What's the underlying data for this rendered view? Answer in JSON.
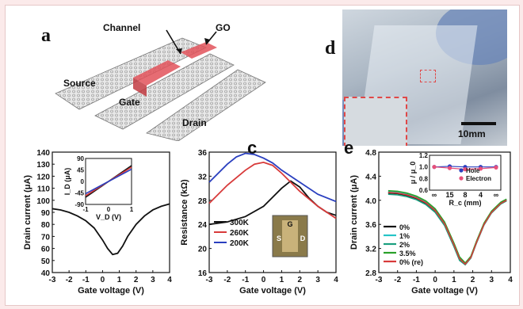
{
  "colors": {
    "page_bg": "#fbeaea",
    "black_series": "#111111",
    "red_series": "#d83a3a",
    "blue_series": "#2a3fbf",
    "green": "#2aa02a",
    "cyan": "#25c4c7",
    "teal": "#1a9f7f",
    "pink_dot": "#e8507a",
    "highlight_red": "#e04848"
  },
  "figure": {
    "panel_a": {
      "letter": "a",
      "labels": {
        "channel": "Channel",
        "go": "GO",
        "source": "Source",
        "gate": "Gate",
        "drain": "Drain"
      }
    },
    "panel_d": {
      "letter": "d",
      "scale_bar": "10mm"
    }
  },
  "chart_data": [
    {
      "panel": "b",
      "type": "line",
      "xlabel": "Gate voltage (V)",
      "ylabel": "Drain current (μA)",
      "xlim": [
        -3,
        4
      ],
      "ylim": [
        40,
        140
      ],
      "xticks": [
        "-3",
        "-2",
        "-1",
        "0",
        "1",
        "2",
        "3",
        "4"
      ],
      "yticks": [
        "40",
        "50",
        "60",
        "70",
        "80",
        "90",
        "100",
        "110",
        "120",
        "130",
        "140"
      ],
      "series": [
        {
          "color": "#111111",
          "x": [
            -3.0,
            -2.5,
            -2.0,
            -1.5,
            -1.0,
            -0.5,
            0.0,
            0.3,
            0.6,
            0.9,
            1.2,
            1.5,
            2.0,
            2.5,
            3.0,
            3.5,
            4.0
          ],
          "y": [
            93,
            92,
            90,
            87,
            83,
            77,
            67,
            60,
            55,
            56,
            62,
            70,
            80,
            87,
            92,
            95,
            97
          ]
        }
      ],
      "inset": {
        "xlabel": "V_D (V)",
        "ylabel": "I_D (μA)",
        "xticks": [
          "-1",
          "0",
          "1"
        ],
        "yticks": [
          "-90",
          "-45",
          "0",
          "45",
          "90"
        ],
        "xlim": [
          -1,
          1
        ],
        "ylim": [
          -90,
          90
        ],
        "lines": [
          {
            "color": "#111111",
            "x": [
              -1,
              1
            ],
            "y": [
              -62,
              62
            ]
          },
          {
            "color": "#d83a3a",
            "x": [
              -1,
              1
            ],
            "y": [
              -56,
              56
            ]
          },
          {
            "color": "#2a3fbf",
            "x": [
              -1,
              1
            ],
            "y": [
              -48,
              48
            ]
          }
        ]
      }
    },
    {
      "panel": "c",
      "type": "line",
      "xlabel": "Gate voltage (V)",
      "ylabel": "Resistance (kΩ)",
      "xlim": [
        -3,
        4
      ],
      "ylim": [
        16,
        36
      ],
      "xticks": [
        "-3",
        "-2",
        "-1",
        "0",
        "1",
        "2",
        "3",
        "4"
      ],
      "yticks": [
        "16",
        "20",
        "24",
        "28",
        "32",
        "36"
      ],
      "series": [
        {
          "name": "300K",
          "color": "#111111",
          "x": [
            -3,
            -2,
            -1,
            0,
            0.5,
            1,
            1.5,
            2,
            2.5,
            3,
            3.5,
            4
          ],
          "y": [
            24,
            24.4,
            25.3,
            27,
            28.5,
            30,
            31.2,
            30.2,
            28.4,
            27,
            26,
            25.5
          ]
        },
        {
          "name": "260K",
          "color": "#d83a3a",
          "x": [
            -3,
            -2,
            -1,
            -0.5,
            0,
            0.5,
            1,
            1.5,
            2,
            3,
            4
          ],
          "y": [
            27.5,
            30.5,
            33,
            34,
            34.3,
            33.8,
            32.5,
            31,
            29.5,
            27,
            25
          ]
        },
        {
          "name": "200K",
          "color": "#2a3fbf",
          "x": [
            -3,
            -2,
            -1.5,
            -1,
            -0.5,
            0,
            0.5,
            1,
            1.5,
            2,
            3,
            4
          ],
          "y": [
            31,
            34,
            35.2,
            35.8,
            35.6,
            35,
            34.2,
            33,
            32,
            31,
            29,
            27.8
          ]
        }
      ],
      "inset_labels": {
        "g": "G",
        "s": "S",
        "d": "D"
      }
    },
    {
      "panel": "e",
      "type": "line",
      "xlabel": "Gate voltage (V)",
      "ylabel": "Drain current (μA)",
      "xlim": [
        -3,
        4
      ],
      "ylim": [
        2.8,
        4.8
      ],
      "xticks": [
        "-3",
        "-2",
        "-1",
        "0",
        "1",
        "2",
        "3",
        "4"
      ],
      "yticks": [
        "2.8",
        "3.2",
        "3.6",
        "4.0",
        "4.4",
        "4.8"
      ],
      "series": [
        {
          "name": "0%",
          "color": "#111111",
          "x": [
            -2.5,
            -2,
            -1.5,
            -1,
            -0.5,
            0,
            0.5,
            1,
            1.3,
            1.6,
            1.9,
            2.2,
            2.6,
            3,
            3.5,
            3.8
          ],
          "y": [
            4.12,
            4.11,
            4.08,
            4.03,
            3.95,
            3.82,
            3.6,
            3.25,
            3.02,
            2.94,
            3.05,
            3.3,
            3.6,
            3.8,
            3.95,
            4.0
          ]
        },
        {
          "name": "1%",
          "color": "#25c4c7",
          "x": [
            -2.5,
            -2,
            -1.5,
            -1,
            -0.5,
            0,
            0.5,
            1,
            1.3,
            1.6,
            1.9,
            2.2,
            2.6,
            3,
            3.5,
            3.8
          ],
          "y": [
            4.14,
            4.13,
            4.1,
            4.05,
            3.97,
            3.84,
            3.62,
            3.27,
            3.04,
            2.95,
            3.06,
            3.31,
            3.61,
            3.81,
            3.96,
            4.01
          ]
        },
        {
          "name": "2%",
          "color": "#1a9f7f",
          "x": [
            -2.5,
            -2,
            -1.5,
            -1,
            -0.5,
            0,
            0.5,
            1,
            1.3,
            1.6,
            1.9,
            2.2,
            2.6,
            3,
            3.5,
            3.8
          ],
          "y": [
            4.1,
            4.09,
            4.06,
            4.01,
            3.93,
            3.8,
            3.58,
            3.23,
            3.0,
            2.93,
            3.04,
            3.29,
            3.59,
            3.79,
            3.94,
            3.99
          ]
        },
        {
          "name": "3.5%",
          "color": "#2aa02a",
          "x": [
            -2.5,
            -2,
            -1.5,
            -1,
            -0.5,
            0,
            0.5,
            1,
            1.3,
            1.6,
            1.9,
            2.2,
            2.6,
            3,
            3.5,
            3.8
          ],
          "y": [
            4.16,
            4.15,
            4.12,
            4.07,
            3.99,
            3.86,
            3.64,
            3.29,
            3.06,
            2.96,
            3.07,
            3.32,
            3.62,
            3.82,
            3.97,
            4.02
          ]
        },
        {
          "name": "0% (re)",
          "color": "#d83a3a",
          "x": [
            -2.5,
            -2,
            -1.5,
            -1,
            -0.5,
            0,
            0.5,
            1,
            1.3,
            1.6,
            1.9,
            2.2,
            2.6,
            3,
            3.5,
            3.8
          ],
          "y": [
            4.13,
            4.12,
            4.09,
            4.04,
            3.96,
            3.83,
            3.61,
            3.26,
            3.03,
            2.94,
            3.05,
            3.3,
            3.6,
            3.8,
            3.95,
            4.0
          ]
        }
      ],
      "inset": {
        "xlabel": "R_c (mm)",
        "ylabel": "μ / μ_0",
        "xticks": [
          "∞",
          "15",
          "8",
          "4",
          "∞"
        ],
        "yticks": [
          "0.6",
          "0.8",
          "1.0",
          "1.2"
        ],
        "ylim": [
          0.6,
          1.2
        ],
        "series": [
          {
            "name": "Hole",
            "color": "#2a3fbf",
            "y": [
              1.0,
              1.01,
              1.0,
              1.0,
              1.0
            ]
          },
          {
            "name": "Electron",
            "color": "#e8507a",
            "y": [
              1.0,
              0.98,
              0.96,
              0.97,
              0.99
            ]
          }
        ]
      }
    }
  ]
}
